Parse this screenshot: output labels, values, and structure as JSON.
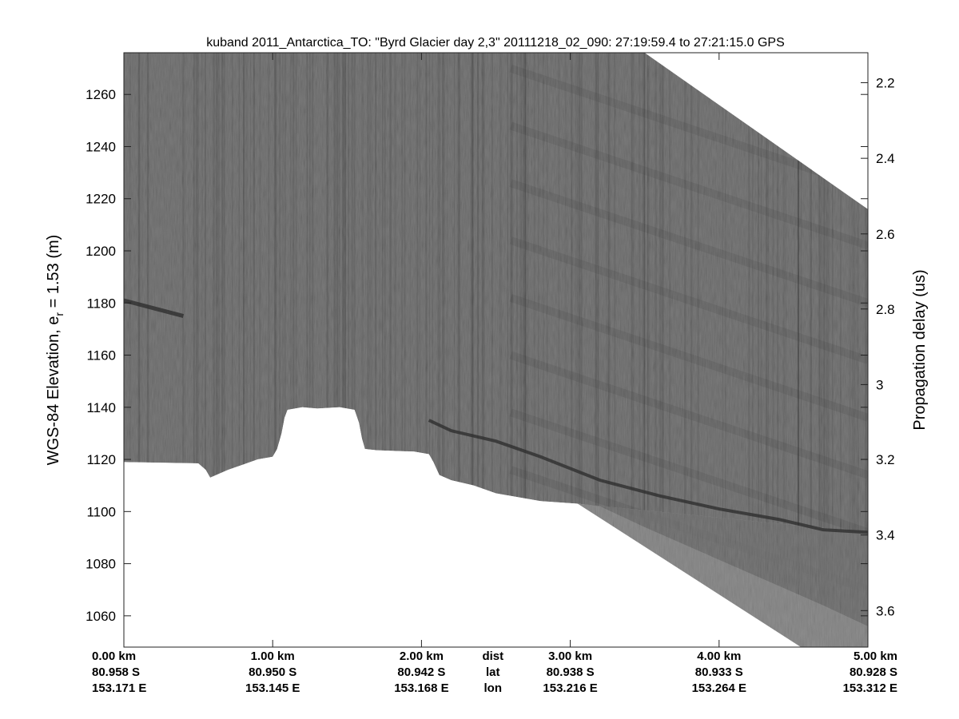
{
  "chart_data": {
    "type": "radar-echogram",
    "title": "kuband 2011_Antarctica_TO: \"Byrd Glacier day 2,3\"  20111218_02_090: 27:19:59.4 to 27:21:15.0 GPS",
    "ylabel": "WGS-84 Elevation, e",
    "ylabel_sub": "r",
    "ylabel_suffix": " = 1.53 (m)",
    "y2label": "Propagation delay (us)",
    "ylim": [
      1048,
      1276
    ],
    "xlim": [
      0,
      5
    ],
    "y_ticks": [
      "1060",
      "1080",
      "1100",
      "1120",
      "1140",
      "1160",
      "1180",
      "1200",
      "1220",
      "1240",
      "1260"
    ],
    "y_tick_values": [
      1060,
      1080,
      1100,
      1120,
      1140,
      1160,
      1180,
      1200,
      1220,
      1240,
      1260
    ],
    "y2_ticks": [
      "2.2",
      "2.4",
      "2.6",
      "2.8",
      "3",
      "3.2",
      "3.4",
      "3.6"
    ],
    "y2_tick_elevations": [
      1264.5,
      1235.5,
      1206.5,
      1177.7,
      1148.7,
      1120,
      1091,
      1062
    ],
    "x_ticks": [
      {
        "dist": "0.00 km",
        "lat": "80.958 S",
        "lon": "153.171 E",
        "x": 0.0
      },
      {
        "dist": "1.00 km",
        "lat": "80.950 S",
        "lon": "153.145 E",
        "x": 1.0
      },
      {
        "dist": "2.00 km",
        "lat": "80.942 S",
        "lon": "153.168 E",
        "x": 2.0
      },
      {
        "dist": "3.00 km",
        "lat": "80.938 S",
        "lon": "153.216 E",
        "x": 3.0
      },
      {
        "dist": "4.00 km",
        "lat": "80.933 S",
        "lon": "153.264 E",
        "x": 4.0
      },
      {
        "dist": "5.00 km",
        "lat": "80.928 S",
        "lon": "153.312 E",
        "x": 5.0
      }
    ],
    "row_labels": {
      "dist": "dist",
      "lat": "lat",
      "lon": "lon"
    },
    "row_label_x": 2.48,
    "data_top_edge": [
      [
        0,
        1276
      ],
      [
        3.5,
        1276
      ],
      [
        5.0,
        1216
      ]
    ],
    "surface_profile": [
      [
        0.0,
        1119
      ],
      [
        0.5,
        1118.5
      ],
      [
        0.55,
        1116
      ],
      [
        0.58,
        1113
      ],
      [
        0.62,
        1114
      ],
      [
        0.7,
        1116
      ],
      [
        0.8,
        1118
      ],
      [
        0.9,
        1120
      ],
      [
        1.0,
        1121
      ],
      [
        1.03,
        1124
      ],
      [
        1.06,
        1130
      ],
      [
        1.08,
        1136
      ],
      [
        1.1,
        1139
      ],
      [
        1.2,
        1140
      ],
      [
        1.3,
        1139.5
      ],
      [
        1.45,
        1140
      ],
      [
        1.55,
        1139
      ],
      [
        1.58,
        1134
      ],
      [
        1.6,
        1128
      ],
      [
        1.62,
        1124
      ],
      [
        1.7,
        1123.5
      ],
      [
        1.95,
        1123
      ],
      [
        2.05,
        1122
      ],
      [
        2.08,
        1119
      ],
      [
        2.12,
        1114
      ],
      [
        2.2,
        1112
      ],
      [
        2.35,
        1110
      ],
      [
        2.5,
        1107
      ],
      [
        2.65,
        1105.5
      ],
      [
        2.8,
        1104
      ],
      [
        3.05,
        1103
      ],
      [
        3.2,
        1102
      ],
      [
        3.5,
        1094
      ],
      [
        3.9,
        1084
      ],
      [
        4.3,
        1074
      ],
      [
        4.7,
        1064
      ],
      [
        5.0,
        1056
      ]
    ],
    "bottom_signal_end_x": 5.0,
    "bottom_signal_end_y": 1048,
    "layers": [
      {
        "name": "",
        "points": [
          [
            0.0,
            1181
          ],
          [
            0.2,
            1178
          ],
          [
            0.4,
            1175
          ]
        ]
      },
      {
        "name": "",
        "points": [
          [
            2.05,
            1135
          ],
          [
            2.2,
            1131
          ],
          [
            2.5,
            1127
          ],
          [
            2.8,
            1121
          ],
          [
            3.2,
            1112
          ],
          [
            3.6,
            1106
          ],
          [
            4.0,
            1101
          ],
          [
            4.4,
            1097
          ],
          [
            4.7,
            1093
          ],
          [
            5.0,
            1092
          ]
        ]
      }
    ],
    "colors": {
      "echo_base": "#7a7a7a",
      "echo_dark": "#2b2b2b",
      "background": "#ffffff"
    }
  }
}
